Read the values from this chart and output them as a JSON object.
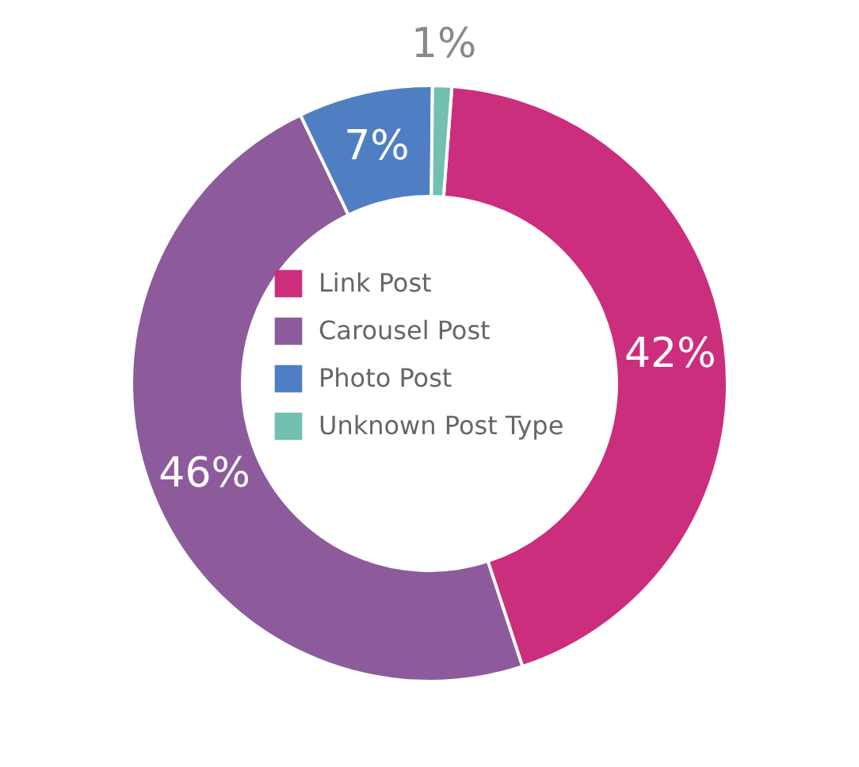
{
  "chart_data": {
    "type": "donut",
    "categories": [
      "Link Post",
      "Carousel Post",
      "Photo Post",
      "Unknown Post Type"
    ],
    "values": [
      42,
      46,
      7,
      1
    ],
    "colors": [
      "#cc2e7e",
      "#8d5b9c",
      "#4f7fc2",
      "#73bfb0"
    ],
    "value_labels": [
      "42%",
      "46%",
      "7%",
      "1%"
    ],
    "legend": "center"
  }
}
